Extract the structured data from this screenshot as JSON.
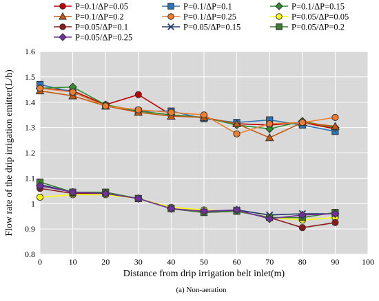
{
  "chart_data": {
    "type": "line",
    "title": "",
    "caption": "(a) Non-aeration",
    "xlabel": "Distance from drip irrigation belt inlet(m)",
    "ylabel": "Flow rate of the drip irrigation emitter(L/h)",
    "xlim": [
      0,
      100
    ],
    "ylim": [
      0.8,
      1.6
    ],
    "xticks": [
      0,
      10,
      20,
      30,
      40,
      50,
      60,
      70,
      80,
      90,
      100
    ],
    "yticks": [
      0.8,
      0.9,
      1,
      1.1,
      1.2,
      1.3,
      1.4,
      1.5,
      1.6
    ],
    "xtick_labels": [
      "0",
      "10",
      "20",
      "30",
      "40",
      "50",
      "60",
      "70",
      "80",
      "90",
      "100"
    ],
    "ytick_labels": [
      "0.8",
      "0.9",
      "1",
      "1.1",
      "1.2",
      "1.3",
      "1.4",
      "1.5",
      "1.6"
    ],
    "grid": true,
    "plot_background": "#d9d9d9",
    "legend_position": "top",
    "x": [
      0,
      10,
      20,
      30,
      40,
      50,
      60,
      70,
      80,
      90
    ],
    "series": [
      {
        "name": "P=0.1/ΔP=0.05",
        "color": "#c00000",
        "marker": "circle",
        "values": [
          1.455,
          1.445,
          1.39,
          1.43,
          1.35,
          1.34,
          1.315,
          1.31,
          1.32,
          1.295
        ]
      },
      {
        "name": "P=0.1/ΔP=0.1",
        "color": "#2e75b6",
        "marker": "square",
        "values": [
          1.47,
          1.44,
          1.385,
          1.365,
          1.365,
          1.335,
          1.32,
          1.33,
          1.31,
          1.285
        ]
      },
      {
        "name": "P=0.1/ΔP=0.15",
        "color": "#2e8b2e",
        "marker": "diamond",
        "values": [
          1.455,
          1.46,
          1.39,
          1.365,
          1.35,
          1.34,
          1.31,
          1.295,
          1.325,
          1.3
        ]
      },
      {
        "name": "P=0.1/ΔP=0.2",
        "color": "#c55a11",
        "marker": "triangle",
        "values": [
          1.445,
          1.425,
          1.385,
          1.36,
          1.345,
          1.34,
          1.315,
          1.26,
          1.32,
          1.305
        ]
      },
      {
        "name": "P=0.1/ΔP=0.25",
        "color": "#ed7d31",
        "marker": "circle",
        "values": [
          1.455,
          1.44,
          1.385,
          1.37,
          1.36,
          1.35,
          1.275,
          1.315,
          1.32,
          1.34
        ]
      },
      {
        "name": "P=0.05/ΔP=0.05",
        "color": "#ffff00",
        "marker": "circle",
        "values": [
          1.025,
          1.035,
          1.035,
          1.02,
          0.985,
          0.975,
          0.97,
          0.945,
          0.935,
          0.945
        ]
      },
      {
        "name": "P=0.05/ΔP=0.1",
        "color": "#8b1a1a",
        "marker": "circle",
        "values": [
          1.06,
          1.04,
          1.04,
          1.02,
          0.98,
          0.965,
          0.97,
          0.945,
          0.905,
          0.925
        ]
      },
      {
        "name": "P=0.05/ΔP=0.15",
        "color": "#1f3864",
        "marker": "x",
        "values": [
          1.075,
          1.045,
          1.04,
          1.02,
          0.98,
          0.965,
          0.975,
          0.955,
          0.96,
          0.96
        ]
      },
      {
        "name": "P=0.05/ΔP=0.2",
        "color": "#3a7d2c",
        "marker": "square",
        "values": [
          1.085,
          1.045,
          1.045,
          1.02,
          0.98,
          0.965,
          0.97,
          0.945,
          0.945,
          0.965
        ]
      },
      {
        "name": "P=0.05/ΔP=0.25",
        "color": "#7030a0",
        "marker": "diamond",
        "values": [
          1.07,
          1.045,
          1.04,
          1.02,
          0.98,
          0.97,
          0.975,
          0.94,
          0.955,
          0.96
        ]
      }
    ]
  }
}
